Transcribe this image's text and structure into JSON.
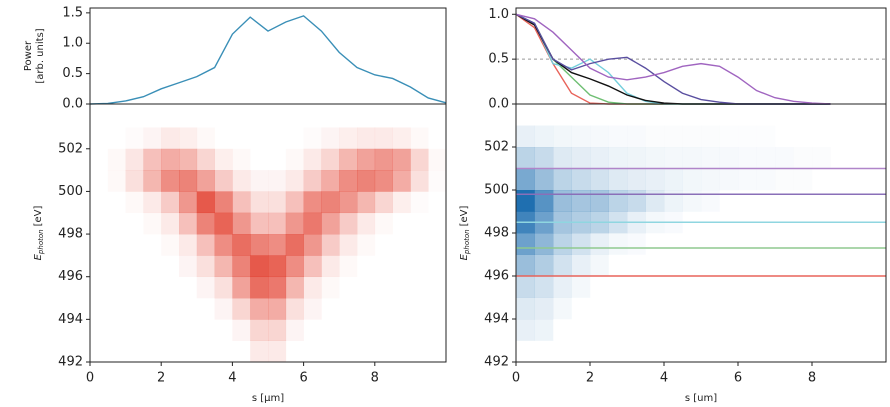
{
  "chart_data": [
    {
      "type": "line",
      "ylabel": [
        "Power",
        "[arb. units]"
      ],
      "xlim": [
        0,
        10
      ],
      "ylim": [
        0,
        1.58
      ],
      "yticks": [
        {
          "value": 0,
          "label": "0.0"
        },
        {
          "value": 0.5,
          "label": "0.5"
        },
        {
          "value": 1,
          "label": "1.0"
        },
        {
          "value": 1.5,
          "label": "1.5"
        }
      ],
      "x": [
        0,
        0.5,
        1,
        1.5,
        2,
        2.5,
        3,
        3.5,
        4,
        4.5,
        5,
        5.5,
        6,
        6.5,
        7,
        7.5,
        8,
        8.5,
        9,
        9.5,
        10
      ],
      "series": [
        {
          "color": "#3a8fb7",
          "values": [
            0,
            0.01,
            0.05,
            0.12,
            0.25,
            0.35,
            0.45,
            0.6,
            1.15,
            1.43,
            1.2,
            1.35,
            1.45,
            1.2,
            0.85,
            0.6,
            0.48,
            0.42,
            0.28,
            0.1,
            0.02
          ]
        }
      ]
    },
    {
      "type": "heatmap",
      "xlabel": "s [μm]",
      "ylabel": {
        "symbol": "E",
        "subscript": "photon",
        "unit": "[eV]"
      },
      "xlim": [
        0,
        10
      ],
      "ylim": [
        492,
        504.1
      ],
      "xticks": [
        0,
        2,
        4,
        6,
        8
      ],
      "yticks": [
        492,
        494,
        496,
        498,
        500,
        502
      ],
      "color": "#e0301e",
      "xbins": [
        0,
        0.5,
        1,
        1.5,
        2,
        2.5,
        3,
        3.5,
        4,
        4.5,
        5,
        5.5,
        6,
        6.5,
        7,
        7.5,
        8,
        8.5,
        9,
        9.5,
        10
      ],
      "ybins": [
        492,
        493,
        494,
        495,
        496,
        497,
        498,
        499,
        500,
        501,
        502,
        503
      ],
      "z": [
        [
          0,
          0,
          0,
          0,
          0,
          0,
          0,
          0,
          0,
          0.1,
          0.1,
          0,
          0,
          0,
          0,
          0,
          0,
          0,
          0,
          0
        ],
        [
          0,
          0,
          0,
          0,
          0,
          0,
          0,
          0,
          0.05,
          0.2,
          0.2,
          0.05,
          0,
          0,
          0,
          0,
          0,
          0,
          0,
          0
        ],
        [
          0,
          0,
          0,
          0,
          0,
          0,
          0,
          0.05,
          0.2,
          0.4,
          0.4,
          0.15,
          0.05,
          0,
          0,
          0,
          0,
          0,
          0,
          0
        ],
        [
          0,
          0,
          0,
          0,
          0,
          0,
          0.05,
          0.15,
          0.45,
          0.7,
          0.65,
          0.35,
          0.1,
          0.03,
          0,
          0,
          0,
          0,
          0,
          0
        ],
        [
          0,
          0,
          0,
          0,
          0,
          0.05,
          0.15,
          0.35,
          0.6,
          0.8,
          0.75,
          0.55,
          0.3,
          0.1,
          0.03,
          0,
          0,
          0,
          0,
          0
        ],
        [
          0,
          0,
          0,
          0,
          0.03,
          0.1,
          0.3,
          0.55,
          0.7,
          0.6,
          0.55,
          0.7,
          0.5,
          0.25,
          0.1,
          0.03,
          0,
          0,
          0,
          0
        ],
        [
          0,
          0,
          0,
          0.03,
          0.1,
          0.3,
          0.6,
          0.75,
          0.5,
          0.3,
          0.3,
          0.5,
          0.65,
          0.45,
          0.25,
          0.1,
          0.03,
          0,
          0,
          0
        ],
        [
          0,
          0,
          0.03,
          0.1,
          0.25,
          0.5,
          0.8,
          0.6,
          0.3,
          0.15,
          0.15,
          0.3,
          0.55,
          0.6,
          0.5,
          0.35,
          0.2,
          0.08,
          0.02,
          0
        ],
        [
          0,
          0.03,
          0.15,
          0.35,
          0.55,
          0.6,
          0.45,
          0.25,
          0.1,
          0.05,
          0.05,
          0.1,
          0.25,
          0.4,
          0.55,
          0.6,
          0.55,
          0.4,
          0.15,
          0.02
        ],
        [
          0,
          0.03,
          0.12,
          0.3,
          0.4,
          0.35,
          0.2,
          0.08,
          0.03,
          0,
          0,
          0.03,
          0.1,
          0.2,
          0.35,
          0.45,
          0.5,
          0.45,
          0.2,
          0.03
        ],
        [
          0,
          0,
          0.02,
          0.05,
          0.1,
          0.08,
          0.03,
          0,
          0,
          0,
          0,
          0,
          0.02,
          0.05,
          0.08,
          0.1,
          0.1,
          0.08,
          0.03,
          0
        ]
      ]
    },
    {
      "type": "line",
      "xlim": [
        0,
        10
      ],
      "ylim": [
        0,
        1.07
      ],
      "yticks": [
        {
          "value": 0,
          "label": "0.0"
        },
        {
          "value": 0.5,
          "label": "0.5"
        },
        {
          "value": 1,
          "label": "1.0"
        }
      ],
      "hlines": [
        {
          "value": 0.5,
          "color": "#999999",
          "dash": true
        }
      ],
      "x": [
        0,
        0.5,
        1,
        1.5,
        2,
        2.5,
        3,
        3.5,
        4,
        4.5,
        5,
        5.5,
        6,
        6.5,
        7,
        7.5,
        8,
        8.5
      ],
      "series": [
        {
          "color": "#e8635a",
          "values": [
            1,
            0.85,
            0.45,
            0.12,
            0.01,
            0,
            0,
            0,
            0,
            0,
            0,
            0,
            0,
            0,
            0,
            0,
            0,
            0
          ]
        },
        {
          "color": "#6fbf73",
          "values": [
            1,
            0.9,
            0.5,
            0.3,
            0.1,
            0.02,
            0,
            0,
            0,
            0,
            0,
            0,
            0,
            0,
            0,
            0,
            0,
            0
          ]
        },
        {
          "color": "#74cfdc",
          "values": [
            1,
            0.9,
            0.45,
            0.4,
            0.5,
            0.35,
            0.12,
            0.03,
            0,
            0,
            0,
            0,
            0,
            0,
            0,
            0,
            0,
            0
          ]
        },
        {
          "color": "#111111",
          "values": [
            1,
            0.88,
            0.5,
            0.35,
            0.28,
            0.2,
            0.1,
            0.04,
            0.01,
            0,
            0,
            0,
            0,
            0,
            0,
            0,
            0,
            0
          ]
        },
        {
          "color": "#5a4fa0",
          "values": [
            1,
            0.9,
            0.5,
            0.38,
            0.45,
            0.5,
            0.52,
            0.4,
            0.25,
            0.12,
            0.05,
            0.02,
            0,
            0,
            0,
            0,
            0,
            0
          ]
        },
        {
          "color": "#a065c0",
          "values": [
            1,
            0.95,
            0.8,
            0.6,
            0.4,
            0.3,
            0.27,
            0.3,
            0.35,
            0.42,
            0.45,
            0.42,
            0.3,
            0.15,
            0.07,
            0.03,
            0.01,
            0
          ]
        }
      ]
    },
    {
      "type": "heatmap",
      "xlabel": "s [um]",
      "ylabel": {
        "symbol": "E",
        "subscript": "photon",
        "unit": "[eV]"
      },
      "xlim": [
        0,
        10
      ],
      "ylim": [
        492,
        504
      ],
      "xticks": [
        0,
        2,
        4,
        6,
        8
      ],
      "yticks": [
        492,
        494,
        496,
        498,
        500,
        502
      ],
      "color": "#1f6fb0",
      "xbins": [
        0,
        0.5,
        1,
        1.5,
        2,
        2.5,
        3,
        3.5,
        4,
        4.5,
        5,
        5.5,
        6,
        6.5,
        7,
        7.5,
        8,
        8.5
      ],
      "ybins": [
        493,
        494,
        495,
        496,
        497,
        498,
        499,
        500,
        501,
        502,
        503
      ],
      "z": [
        [
          0.1,
          0.08,
          0,
          0,
          0,
          0,
          0,
          0,
          0,
          0,
          0,
          0,
          0,
          0,
          0,
          0,
          0
        ],
        [
          0.15,
          0.12,
          0.05,
          0,
          0,
          0,
          0,
          0,
          0,
          0,
          0,
          0,
          0,
          0,
          0,
          0,
          0
        ],
        [
          0.25,
          0.2,
          0.1,
          0.05,
          0,
          0,
          0,
          0,
          0,
          0,
          0,
          0,
          0,
          0,
          0,
          0,
          0
        ],
        [
          0.45,
          0.35,
          0.2,
          0.1,
          0.05,
          0,
          0,
          0,
          0,
          0,
          0,
          0,
          0,
          0,
          0,
          0,
          0
        ],
        [
          0.65,
          0.5,
          0.3,
          0.2,
          0.1,
          0.05,
          0.03,
          0,
          0,
          0,
          0,
          0,
          0,
          0,
          0,
          0,
          0
        ],
        [
          0.85,
          0.65,
          0.4,
          0.35,
          0.3,
          0.2,
          0.1,
          0.05,
          0.03,
          0,
          0,
          0,
          0,
          0,
          0,
          0,
          0
        ],
        [
          1,
          0.75,
          0.45,
          0.4,
          0.4,
          0.3,
          0.25,
          0.15,
          0.08,
          0.05,
          0.03,
          0,
          0,
          0,
          0,
          0,
          0
        ],
        [
          0.6,
          0.45,
          0.3,
          0.25,
          0.2,
          0.15,
          0.12,
          0.1,
          0.08,
          0.06,
          0.05,
          0.04,
          0.03,
          0.03,
          0.02,
          0.02,
          0
        ],
        [
          0.3,
          0.25,
          0.15,
          0.12,
          0.1,
          0.08,
          0.07,
          0.06,
          0.05,
          0.05,
          0.04,
          0.04,
          0.03,
          0.03,
          0.03,
          0.02,
          0.02
        ],
        [
          0.1,
          0.08,
          0.06,
          0.05,
          0.04,
          0.03,
          0.03,
          0.02,
          0.02,
          0.02,
          0.02,
          0.01,
          0.01,
          0.01,
          0,
          0,
          0
        ]
      ],
      "hlines": [
        {
          "value": 496,
          "color": "#e8635a"
        },
        {
          "value": 497.3,
          "color": "#8fc98f"
        },
        {
          "value": 498.5,
          "color": "#8fd6e0"
        },
        {
          "value": 499.8,
          "color": "#8a6fb8"
        },
        {
          "value": 501,
          "color": "#b085c9"
        }
      ]
    }
  ]
}
